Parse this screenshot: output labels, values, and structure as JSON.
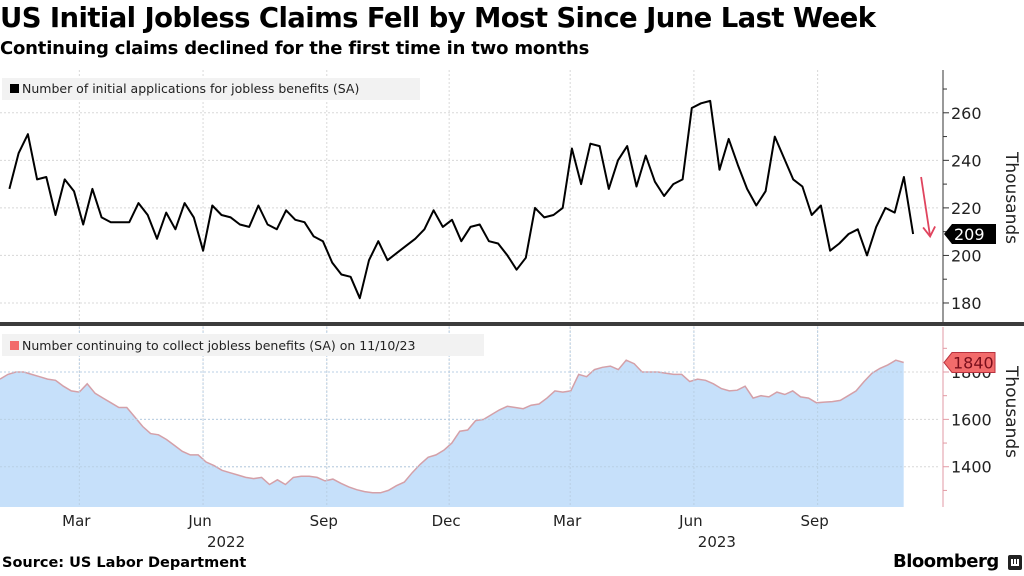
{
  "header": {
    "title": "US Initial Jobless Claims Fell by Most Since June Last Week",
    "subtitle": "Continuing claims declined for the first time in two months"
  },
  "footer": {
    "source": "Source: US Labor Department",
    "brand": "Bloomberg"
  },
  "colors": {
    "initial_line": "#000000",
    "continuing_line": "#d4a0a8",
    "continuing_fill": "#c6e0fa",
    "continuing_marker": "#f26b6b",
    "arrow": "#e0445e",
    "grid": "#d8d8d8",
    "divider": "#3c3c3c"
  },
  "chart_data": [
    {
      "type": "line",
      "panel": "top",
      "legend": "Number of initial applications for jobless benefits (SA)",
      "legend_placement": "top-left",
      "ylabel": "Thousands",
      "ylim": [
        172,
        278
      ],
      "yticks": [
        180,
        200,
        220,
        240,
        260
      ],
      "grid": true,
      "last_value_label": "209",
      "annotation": "red down arrow beside latest value",
      "x_start": "2022-01-08",
      "x_end": "2023-11-11",
      "frequency": "weekly",
      "values": [
        228,
        243,
        251,
        232,
        233,
        217,
        232,
        227,
        213,
        228,
        216,
        214,
        214,
        214,
        222,
        217,
        207,
        218,
        211,
        222,
        216,
        202,
        221,
        217,
        216,
        213,
        212,
        221,
        213,
        211,
        219,
        215,
        214,
        208,
        206,
        197,
        192,
        191,
        182,
        198,
        206,
        198,
        201,
        204,
        207,
        211,
        219,
        212,
        215,
        206,
        212,
        213,
        206,
        205,
        200,
        194,
        199,
        220,
        216,
        217,
        220,
        245,
        230,
        247,
        246,
        228,
        240,
        246,
        229,
        242,
        231,
        225,
        230,
        232,
        262,
        264,
        265,
        236,
        249,
        238,
        228,
        221,
        227,
        250,
        241,
        232,
        229,
        217,
        221,
        202,
        205,
        209,
        211,
        200,
        212,
        220,
        218,
        233,
        209
      ]
    },
    {
      "type": "area",
      "panel": "bottom",
      "legend": "Number continuing to collect jobless benefits (SA) on 11/10/23",
      "legend_placement": "top-left",
      "ylabel": "Thousands",
      "ylim": [
        1230,
        1990
      ],
      "yticks": [
        1400,
        1600,
        1800
      ],
      "grid": true,
      "last_value_label": "1840",
      "x_start": "2022-01-01",
      "x_end": "2023-11-04",
      "frequency": "weekly",
      "values": [
        1770,
        1790,
        1800,
        1800,
        1790,
        1780,
        1770,
        1765,
        1740,
        1720,
        1715,
        1750,
        1710,
        1690,
        1670,
        1650,
        1650,
        1610,
        1570,
        1540,
        1535,
        1515,
        1490,
        1465,
        1450,
        1450,
        1420,
        1405,
        1385,
        1375,
        1365,
        1355,
        1350,
        1355,
        1325,
        1345,
        1325,
        1355,
        1360,
        1360,
        1355,
        1340,
        1348,
        1330,
        1315,
        1303,
        1295,
        1290,
        1290,
        1300,
        1320,
        1335,
        1375,
        1410,
        1440,
        1450,
        1470,
        1500,
        1550,
        1555,
        1595,
        1600,
        1620,
        1640,
        1655,
        1650,
        1645,
        1660,
        1665,
        1690,
        1720,
        1715,
        1720,
        1790,
        1780,
        1810,
        1820,
        1825,
        1810,
        1850,
        1835,
        1800,
        1800,
        1800,
        1795,
        1790,
        1790,
        1760,
        1770,
        1765,
        1750,
        1730,
        1720,
        1723,
        1740,
        1690,
        1700,
        1695,
        1715,
        1705,
        1720,
        1695,
        1690,
        1670,
        1673,
        1675,
        1680,
        1700,
        1720,
        1760,
        1795,
        1815,
        1830,
        1850,
        1840
      ]
    }
  ],
  "x_axis": {
    "month_ticks": [
      {
        "date": "2022-03-01",
        "label": "Mar"
      },
      {
        "date": "2022-06-01",
        "label": "Jun"
      },
      {
        "date": "2022-09-01",
        "label": "Sep"
      },
      {
        "date": "2022-12-01",
        "label": "Dec"
      },
      {
        "date": "2023-03-01",
        "label": "Mar"
      },
      {
        "date": "2023-06-01",
        "label": "Jun"
      },
      {
        "date": "2023-09-01",
        "label": "Sep"
      }
    ],
    "year_labels": [
      {
        "date": "2022-06-01",
        "label": "2022"
      },
      {
        "date": "2023-06-01",
        "label": "2023"
      }
    ],
    "range": [
      "2022-01-01",
      "2023-12-01"
    ]
  }
}
